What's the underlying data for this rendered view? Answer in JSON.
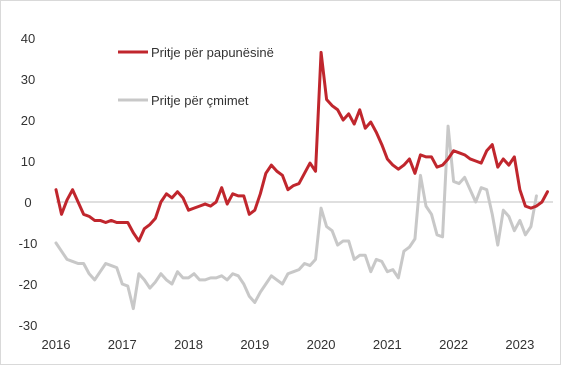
{
  "chart_data": {
    "type": "line",
    "title": "",
    "xlabel": "",
    "ylabel": "",
    "ylim": [
      -30,
      40
    ],
    "yticks": [
      40,
      30,
      20,
      10,
      0,
      -10,
      -20,
      -30
    ],
    "x_ticks": [
      "2016",
      "2017",
      "2018",
      "2019",
      "2020",
      "2021",
      "2022",
      "2023"
    ],
    "x_range": [
      "2016-01",
      "2023-07"
    ],
    "grid": false,
    "legend_position": "top-left",
    "series": [
      {
        "name": "Pritje për papunësinë",
        "color": "#c0262d",
        "points": [
          [
            "2016-01",
            3
          ],
          [
            "2016-02",
            -3
          ],
          [
            "2016-03",
            0.5
          ],
          [
            "2016-04",
            3
          ],
          [
            "2016-05",
            0
          ],
          [
            "2016-06",
            -3
          ],
          [
            "2016-07",
            -3.5
          ],
          [
            "2016-08",
            -4.5
          ],
          [
            "2016-09",
            -4.5
          ],
          [
            "2016-10",
            -5
          ],
          [
            "2016-11",
            -4.5
          ],
          [
            "2016-12",
            -5
          ],
          [
            "2017-01",
            -5
          ],
          [
            "2017-02",
            -5
          ],
          [
            "2017-03",
            -7.5
          ],
          [
            "2017-04",
            -9.5
          ],
          [
            "2017-05",
            -6.5
          ],
          [
            "2017-06",
            -5.5
          ],
          [
            "2017-07",
            -4
          ],
          [
            "2017-08",
            0
          ],
          [
            "2017-09",
            2
          ],
          [
            "2017-10",
            1
          ],
          [
            "2017-11",
            2.5
          ],
          [
            "2017-12",
            1
          ],
          [
            "2018-01",
            -2
          ],
          [
            "2018-02",
            -1.5
          ],
          [
            "2018-03",
            -1
          ],
          [
            "2018-04",
            -0.5
          ],
          [
            "2018-05",
            -1
          ],
          [
            "2018-06",
            0
          ],
          [
            "2018-07",
            3.5
          ],
          [
            "2018-08",
            -0.5
          ],
          [
            "2018-09",
            2
          ],
          [
            "2018-10",
            1.5
          ],
          [
            "2018-11",
            1.5
          ],
          [
            "2018-12",
            -3
          ],
          [
            "2019-01",
            -2
          ],
          [
            "2019-02",
            2
          ],
          [
            "2019-03",
            7
          ],
          [
            "2019-04",
            9
          ],
          [
            "2019-05",
            7.5
          ],
          [
            "2019-06",
            6.5
          ],
          [
            "2019-07",
            3
          ],
          [
            "2019-08",
            4
          ],
          [
            "2019-09",
            4.5
          ],
          [
            "2019-10",
            7
          ],
          [
            "2019-11",
            9.5
          ],
          [
            "2019-12",
            7.5
          ],
          [
            "2020-01",
            36.5
          ],
          [
            "2020-02",
            25
          ],
          [
            "2020-03",
            23.5
          ],
          [
            "2020-04",
            22.5
          ],
          [
            "2020-05",
            20
          ],
          [
            "2020-06",
            21.5
          ],
          [
            "2020-07",
            19
          ],
          [
            "2020-08",
            22.5
          ],
          [
            "2020-09",
            18
          ],
          [
            "2020-10",
            19.5
          ],
          [
            "2020-11",
            17
          ],
          [
            "2020-12",
            14
          ],
          [
            "2021-01",
            10.5
          ],
          [
            "2021-02",
            9
          ],
          [
            "2021-03",
            8
          ],
          [
            "2021-04",
            9
          ],
          [
            "2021-05",
            10.5
          ],
          [
            "2021-06",
            7
          ],
          [
            "2021-07",
            11.5
          ],
          [
            "2021-08",
            11
          ],
          [
            "2021-09",
            11
          ],
          [
            "2021-10",
            8.5
          ],
          [
            "2021-11",
            9
          ],
          [
            "2021-12",
            10.5
          ],
          [
            "2022-01",
            12.5
          ],
          [
            "2022-02",
            12
          ],
          [
            "2022-03",
            11.5
          ],
          [
            "2022-04",
            10.5
          ],
          [
            "2022-05",
            10
          ],
          [
            "2022-06",
            9.5
          ],
          [
            "2022-07",
            12.5
          ],
          [
            "2022-08",
            14
          ],
          [
            "2022-09",
            8.5
          ],
          [
            "2022-10",
            10.5
          ],
          [
            "2022-11",
            9
          ],
          [
            "2022-12",
            11
          ],
          [
            "2023-01",
            3
          ],
          [
            "2023-02",
            -1
          ],
          [
            "2023-03",
            -1.5
          ],
          [
            "2023-04",
            -1
          ],
          [
            "2023-05",
            0
          ],
          [
            "2023-06",
            2.5
          ]
        ]
      },
      {
        "name": "Pritje për çmimet",
        "color": "#c8c8c8",
        "points": [
          [
            "2016-01",
            -10
          ],
          [
            "2016-02",
            -12
          ],
          [
            "2016-03",
            -14
          ],
          [
            "2016-04",
            -14.5
          ],
          [
            "2016-05",
            -15
          ],
          [
            "2016-06",
            -15
          ],
          [
            "2016-07",
            -17.5
          ],
          [
            "2016-08",
            -19
          ],
          [
            "2016-09",
            -17
          ],
          [
            "2016-10",
            -15
          ],
          [
            "2016-11",
            -15.5
          ],
          [
            "2016-12",
            -16
          ],
          [
            "2017-01",
            -20
          ],
          [
            "2017-02",
            -20.5
          ],
          [
            "2017-03",
            -26
          ],
          [
            "2017-04",
            -17.5
          ],
          [
            "2017-05",
            -19
          ],
          [
            "2017-06",
            -21
          ],
          [
            "2017-07",
            -19.5
          ],
          [
            "2017-08",
            -17.5
          ],
          [
            "2017-09",
            -19
          ],
          [
            "2017-10",
            -20
          ],
          [
            "2017-11",
            -17
          ],
          [
            "2017-12",
            -18.5
          ],
          [
            "2018-01",
            -18.5
          ],
          [
            "2018-02",
            -17.5
          ],
          [
            "2018-03",
            -19
          ],
          [
            "2018-04",
            -19
          ],
          [
            "2018-05",
            -18.5
          ],
          [
            "2018-06",
            -18.5
          ],
          [
            "2018-07",
            -18
          ],
          [
            "2018-08",
            -19
          ],
          [
            "2018-09",
            -17.5
          ],
          [
            "2018-10",
            -18
          ],
          [
            "2018-11",
            -20
          ],
          [
            "2018-12",
            -23
          ],
          [
            "2019-01",
            -24.5
          ],
          [
            "2019-02",
            -22
          ],
          [
            "2019-03",
            -20
          ],
          [
            "2019-04",
            -18
          ],
          [
            "2019-05",
            -19
          ],
          [
            "2019-06",
            -20
          ],
          [
            "2019-07",
            -17.5
          ],
          [
            "2019-08",
            -17
          ],
          [
            "2019-09",
            -16.5
          ],
          [
            "2019-10",
            -15
          ],
          [
            "2019-11",
            -15.5
          ],
          [
            "2019-12",
            -14
          ],
          [
            "2020-01",
            -1.5
          ],
          [
            "2020-02",
            -6
          ],
          [
            "2020-03",
            -7
          ],
          [
            "2020-04",
            -10.5
          ],
          [
            "2020-05",
            -9.5
          ],
          [
            "2020-06",
            -9.5
          ],
          [
            "2020-07",
            -14
          ],
          [
            "2020-08",
            -13
          ],
          [
            "2020-09",
            -13
          ],
          [
            "2020-10",
            -17
          ],
          [
            "2020-11",
            -14
          ],
          [
            "2020-12",
            -14.5
          ],
          [
            "2021-01",
            -17
          ],
          [
            "2021-02",
            -16.5
          ],
          [
            "2021-03",
            -18.5
          ],
          [
            "2021-04",
            -12
          ],
          [
            "2021-05",
            -11
          ],
          [
            "2021-06",
            -9
          ],
          [
            "2021-07",
            6.5
          ],
          [
            "2021-08",
            -1
          ],
          [
            "2021-09",
            -3
          ],
          [
            "2021-10",
            -8
          ],
          [
            "2021-11",
            -8.5
          ],
          [
            "2021-12",
            18.5
          ],
          [
            "2022-01",
            5
          ],
          [
            "2022-02",
            4.5
          ],
          [
            "2022-03",
            6
          ],
          [
            "2022-04",
            3
          ],
          [
            "2022-05",
            0
          ],
          [
            "2022-06",
            3.5
          ],
          [
            "2022-07",
            3
          ],
          [
            "2022-08",
            -3
          ],
          [
            "2022-09",
            -10.5
          ],
          [
            "2022-10",
            -2
          ],
          [
            "2022-11",
            -3.5
          ],
          [
            "2022-12",
            -7
          ],
          [
            "2023-01",
            -4.5
          ],
          [
            "2023-02",
            -8
          ],
          [
            "2023-03",
            -6
          ],
          [
            "2023-04",
            1.5
          ]
        ]
      }
    ]
  }
}
